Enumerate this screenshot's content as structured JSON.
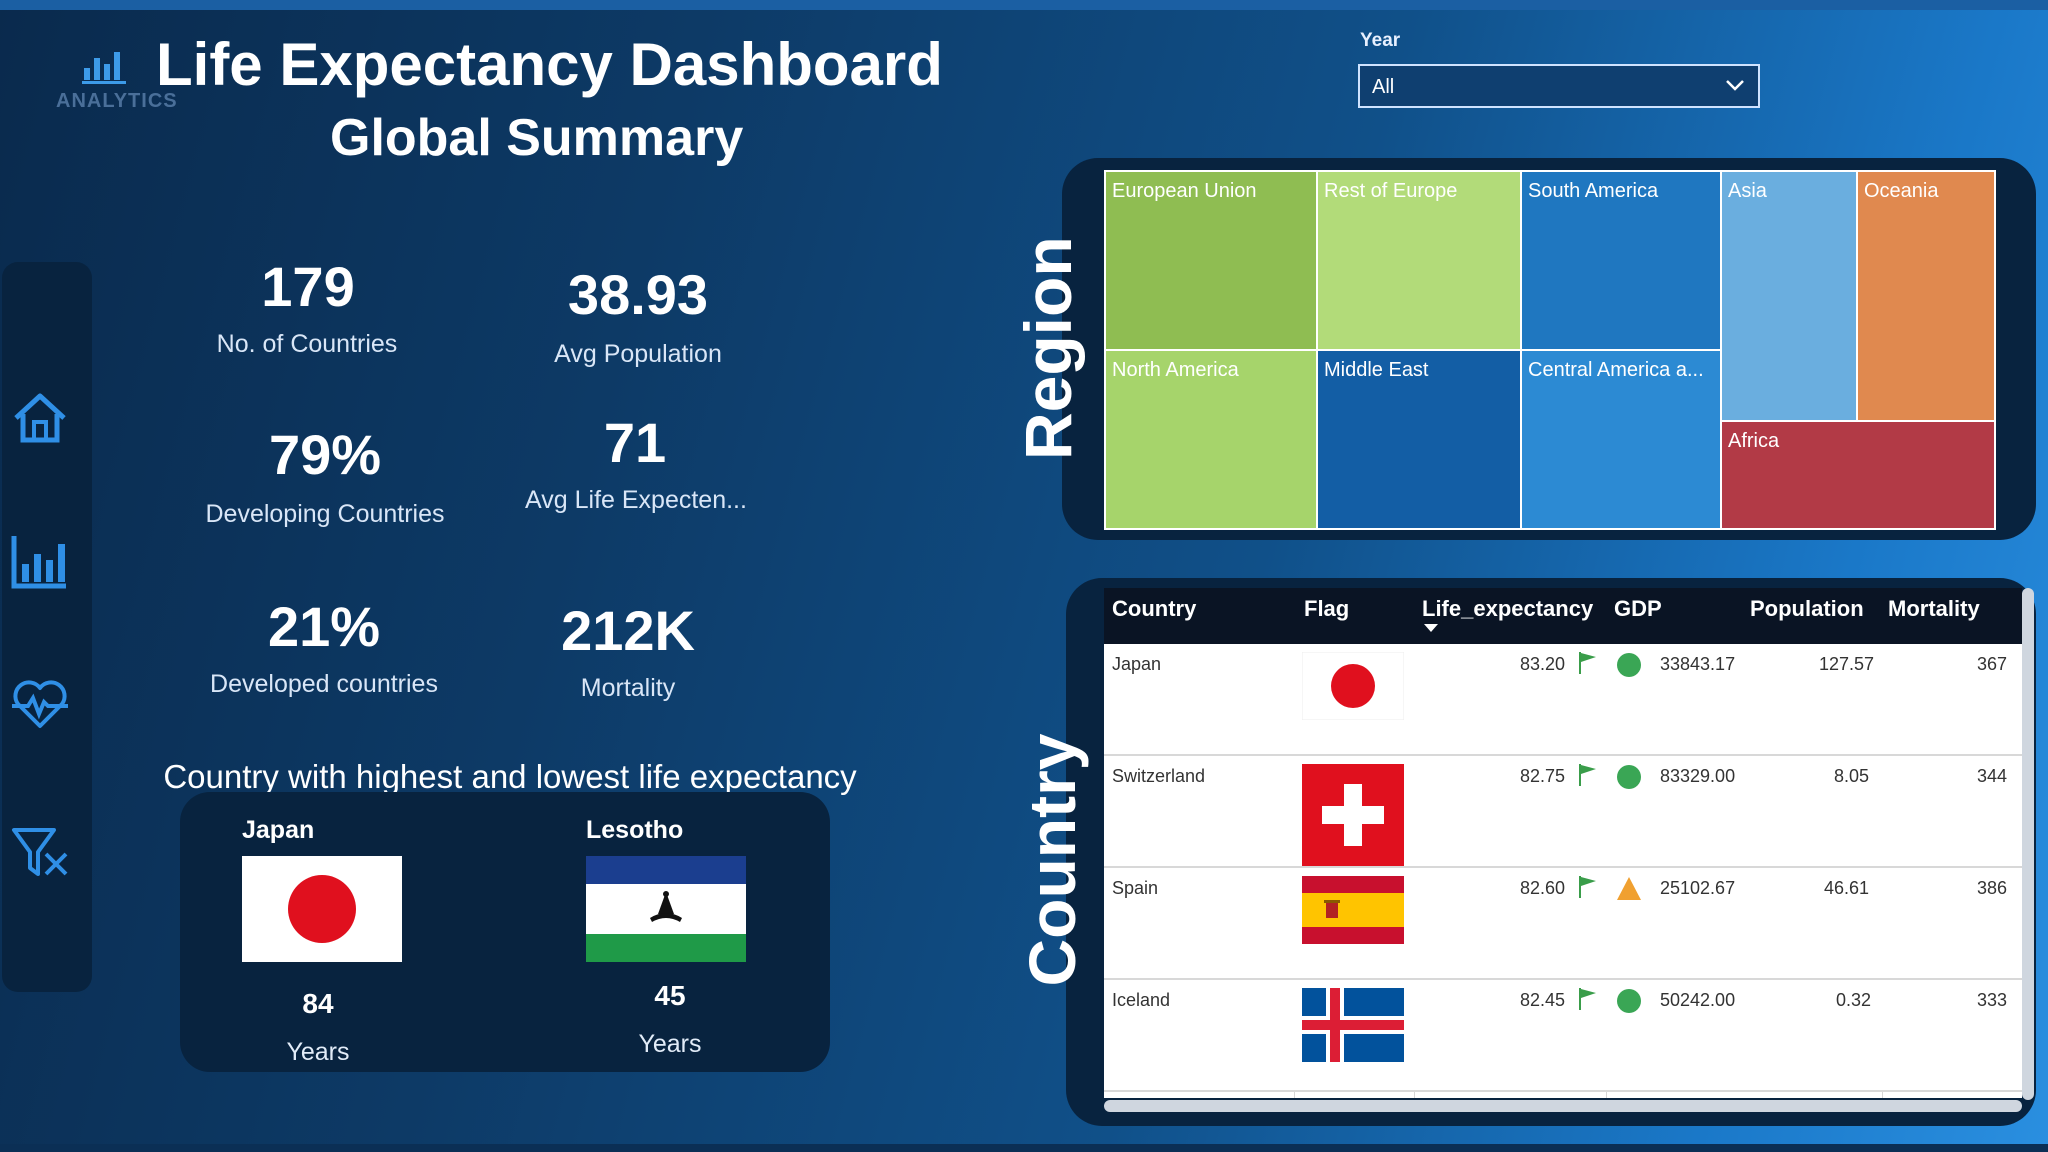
{
  "header": {
    "logo_text": "ANALYTICS",
    "title": "Life Expectancy Dashboard",
    "subtitle": "Global Summary"
  },
  "slicer": {
    "label": "Year",
    "value": "All"
  },
  "nav": {
    "items": [
      "home-icon",
      "bar-chart-icon",
      "heartbeat-icon",
      "clear-filter-icon"
    ]
  },
  "kpis": [
    {
      "value": "179",
      "label": "No. of Countries"
    },
    {
      "value": "38.93",
      "label": "Avg Population"
    },
    {
      "value": "79%",
      "label": "Developing Countries"
    },
    {
      "value": "71",
      "label": "Avg Life Expecten..."
    },
    {
      "value": "21%",
      "label": "Developed countries"
    },
    {
      "value": "212K",
      "label": "Mortality"
    }
  ],
  "highlow": {
    "title": "Country with highest and lowest life expectancy",
    "high": {
      "country": "Japan",
      "value": "84",
      "unit": "Years"
    },
    "low": {
      "country": "Lesotho",
      "value": "45",
      "unit": "Years"
    }
  },
  "region": {
    "label": "Region",
    "tiles": [
      {
        "name": "European Union",
        "color": "#8fbd52"
      },
      {
        "name": "Rest of Europe",
        "color": "#b2db79"
      },
      {
        "name": "South America",
        "color": "#1f77c0"
      },
      {
        "name": "Asia",
        "color": "#6aaedf"
      },
      {
        "name": "Oceania",
        "color": "#e0894f"
      },
      {
        "name": "North America",
        "color": "#a6d46b"
      },
      {
        "name": "Middle East",
        "color": "#135ea5"
      },
      {
        "name": "Central America a...",
        "color": "#2c8ad3"
      },
      {
        "name": "Africa",
        "color": "#b23a46"
      }
    ]
  },
  "country_table": {
    "label": "Country",
    "columns": [
      "Country",
      "Flag",
      "Life_expectancy",
      "GDP",
      "Population",
      "Mortality"
    ],
    "rows": [
      {
        "country": "Japan",
        "life": "83.20",
        "gdp": "33843.17",
        "population": "127.57",
        "mortality": "367",
        "status": "good"
      },
      {
        "country": "Switzerland",
        "life": "82.75",
        "gdp": "83329.00",
        "population": "8.05",
        "mortality": "344",
        "status": "good"
      },
      {
        "country": "Spain",
        "life": "82.60",
        "gdp": "25102.67",
        "population": "46.61",
        "mortality": "386",
        "status": "warn"
      },
      {
        "country": "Iceland",
        "life": "82.45",
        "gdp": "50242.00",
        "population": "0.32",
        "mortality": "333",
        "status": "good"
      }
    ]
  },
  "colors": {
    "good": "#3aa655",
    "warn": "#f0a030",
    "flag_green": "#3a9d4a",
    "accent": "#2a8fe0"
  }
}
